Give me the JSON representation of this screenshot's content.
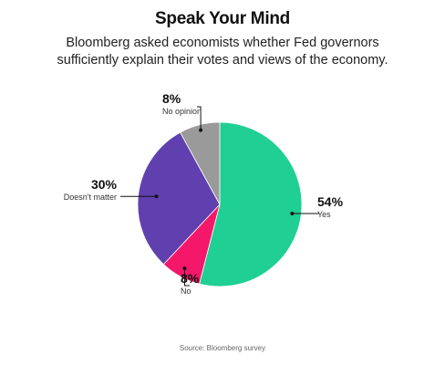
{
  "chart_data": {
    "type": "pie",
    "title": "Speak Your Mind",
    "subtitle": [
      "Bloomberg asked economists whether Fed governors",
      "sufficiently explain their votes and views of the economy."
    ],
    "slices": [
      {
        "label": "Yes",
        "value": 54,
        "value_label": "54%",
        "color": "#1fcf93"
      },
      {
        "label": "No",
        "value": 8,
        "value_label": "8%",
        "color": "#f5176a"
      },
      {
        "label": "Doesn't matter",
        "value": 30,
        "value_label": "30%",
        "color": "#6040ae"
      },
      {
        "label": "No opinion",
        "value": 8,
        "value_label": "8%",
        "color": "#9a9a9a"
      }
    ],
    "source": "Source: Bloomberg survey"
  }
}
